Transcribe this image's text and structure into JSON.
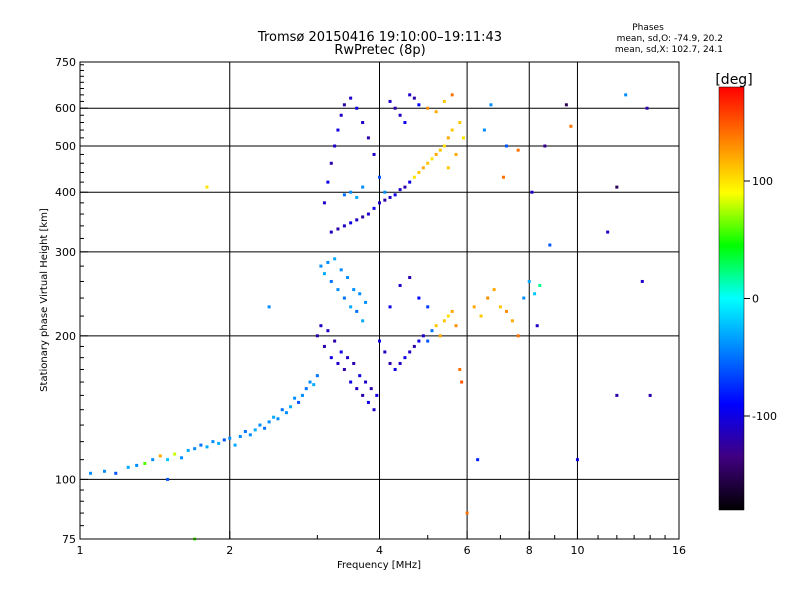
{
  "chart_data": {
    "type": "scatter",
    "title": "Tromsø 20150416 19:10:00–19:11:43",
    "subtitle": "RwPretec (8p)",
    "xlabel": "Frequency [MHz]",
    "ylabel": "Stationary phase Virtual Height [km]",
    "x_scale": "log",
    "y_scale": "log",
    "xlim": [
      1,
      16
    ],
    "ylim": [
      75,
      750
    ],
    "x_ticks": [
      1,
      2,
      4,
      6,
      8,
      10,
      16
    ],
    "x_tick_labels": [
      "1",
      "2",
      "4",
      "6",
      "8",
      "10",
      "16"
    ],
    "y_ticks": [
      75,
      100,
      200,
      300,
      400,
      500,
      600,
      750
    ],
    "y_tick_labels": [
      "75",
      "100",
      "200",
      "300",
      "400",
      "500",
      "600",
      "750"
    ],
    "grid": true,
    "phase_info": {
      "heading": "Phases",
      "line_o": "mean, sd,O: -74.9, 20.2",
      "line_x": "mean, sd,X: 102.7, 24.1"
    },
    "colorbar": {
      "label": "[deg]",
      "range": [
        -180,
        180
      ],
      "ticks": [
        100,
        0,
        -100
      ],
      "tick_labels": [
        "100",
        "0",
        "-100"
      ],
      "colors": [
        "#ff0000",
        "#ff8000",
        "#ffff00",
        "#00ff00",
        "#00ffff",
        "#0080ff",
        "#0000ff",
        "#400080",
        "#000000"
      ]
    },
    "points": [
      [
        1.05,
        103,
        -40
      ],
      [
        1.12,
        104,
        -40
      ],
      [
        1.18,
        103,
        -60
      ],
      [
        1.25,
        106,
        -30
      ],
      [
        1.3,
        107,
        -40
      ],
      [
        1.35,
        108,
        60
      ],
      [
        1.4,
        110,
        -40
      ],
      [
        1.45,
        112,
        120
      ],
      [
        1.5,
        100,
        -60
      ],
      [
        1.5,
        110,
        -20
      ],
      [
        1.55,
        113,
        80
      ],
      [
        1.6,
        111,
        -40
      ],
      [
        1.65,
        115,
        -30
      ],
      [
        1.7,
        116,
        -40
      ],
      [
        1.75,
        118,
        -50
      ],
      [
        1.8,
        117,
        -30
      ],
      [
        1.85,
        120,
        -40
      ],
      [
        1.9,
        119,
        -30
      ],
      [
        1.95,
        121,
        -60
      ],
      [
        2.0,
        122,
        -40
      ],
      [
        2.05,
        118,
        -30
      ],
      [
        2.1,
        123,
        -40
      ],
      [
        2.15,
        126,
        -50
      ],
      [
        2.2,
        124,
        -40
      ],
      [
        2.25,
        127,
        -30
      ],
      [
        2.3,
        130,
        -40
      ],
      [
        2.35,
        128,
        -50
      ],
      [
        2.4,
        132,
        -40
      ],
      [
        2.45,
        135,
        -30
      ],
      [
        2.5,
        134,
        -40
      ],
      [
        2.55,
        140,
        -50
      ],
      [
        2.6,
        138,
        -40
      ],
      [
        2.65,
        142,
        -30
      ],
      [
        2.7,
        148,
        -40
      ],
      [
        2.75,
        145,
        -60
      ],
      [
        2.8,
        150,
        -40
      ],
      [
        2.85,
        155,
        -50
      ],
      [
        2.9,
        160,
        -40
      ],
      [
        2.95,
        158,
        -30
      ],
      [
        3.0,
        165,
        -50
      ],
      [
        2.4,
        230,
        -40
      ],
      [
        1.7,
        75,
        60
      ],
      [
        1.8,
        410,
        100
      ],
      [
        3.05,
        280,
        -40
      ],
      [
        3.1,
        270,
        -30
      ],
      [
        3.15,
        285,
        -40
      ],
      [
        3.2,
        260,
        -50
      ],
      [
        3.25,
        290,
        -30
      ],
      [
        3.3,
        250,
        -40
      ],
      [
        3.35,
        275,
        -40
      ],
      [
        3.4,
        240,
        -50
      ],
      [
        3.45,
        265,
        -40
      ],
      [
        3.5,
        230,
        -30
      ],
      [
        3.55,
        250,
        -40
      ],
      [
        3.6,
        225,
        -50
      ],
      [
        3.65,
        245,
        -40
      ],
      [
        3.7,
        215,
        -30
      ],
      [
        3.75,
        235,
        -40
      ],
      [
        3.0,
        200,
        -120
      ],
      [
        3.05,
        210,
        -110
      ],
      [
        3.1,
        190,
        -120
      ],
      [
        3.15,
        205,
        -110
      ],
      [
        3.2,
        180,
        -100
      ],
      [
        3.25,
        195,
        -120
      ],
      [
        3.3,
        175,
        -110
      ],
      [
        3.35,
        185,
        -100
      ],
      [
        3.4,
        170,
        -120
      ],
      [
        3.45,
        180,
        -110
      ],
      [
        3.5,
        160,
        -100
      ],
      [
        3.55,
        175,
        -120
      ],
      [
        3.6,
        155,
        -110
      ],
      [
        3.65,
        165,
        -100
      ],
      [
        3.7,
        150,
        -120
      ],
      [
        3.75,
        160,
        -110
      ],
      [
        3.8,
        145,
        -100
      ],
      [
        3.85,
        155,
        -120
      ],
      [
        3.9,
        140,
        -110
      ],
      [
        3.95,
        150,
        -100
      ],
      [
        4.0,
        195,
        -100
      ],
      [
        4.1,
        185,
        -110
      ],
      [
        4.2,
        175,
        -120
      ],
      [
        4.3,
        170,
        -100
      ],
      [
        4.4,
        175,
        -110
      ],
      [
        4.5,
        180,
        -100
      ],
      [
        4.6,
        185,
        -110
      ],
      [
        4.7,
        190,
        -120
      ],
      [
        4.8,
        195,
        -100
      ],
      [
        4.9,
        200,
        -110
      ],
      [
        5.0,
        195,
        -60
      ],
      [
        5.1,
        205,
        -50
      ],
      [
        5.2,
        210,
        110
      ],
      [
        5.3,
        200,
        120
      ],
      [
        5.4,
        215,
        110
      ],
      [
        5.5,
        220,
        100
      ],
      [
        5.6,
        225,
        120
      ],
      [
        5.7,
        210,
        130
      ],
      [
        5.8,
        170,
        140
      ],
      [
        5.85,
        160,
        150
      ],
      [
        4.2,
        230,
        -100
      ],
      [
        4.4,
        255,
        -110
      ],
      [
        4.6,
        265,
        -120
      ],
      [
        4.8,
        240,
        -90
      ],
      [
        5.0,
        230,
        -70
      ],
      [
        6.2,
        230,
        120
      ],
      [
        6.4,
        220,
        110
      ],
      [
        6.6,
        240,
        130
      ],
      [
        6.8,
        250,
        120
      ],
      [
        7.0,
        230,
        110
      ],
      [
        7.2,
        225,
        130
      ],
      [
        7.4,
        215,
        120
      ],
      [
        7.6,
        200,
        140
      ],
      [
        7.8,
        240,
        -40
      ],
      [
        8.0,
        260,
        -30
      ],
      [
        8.2,
        245,
        -20
      ],
      [
        8.4,
        255,
        20
      ],
      [
        6.3,
        110,
        -80
      ],
      [
        8.3,
        210,
        -110
      ],
      [
        13.5,
        260,
        -110
      ],
      [
        14.0,
        150,
        -120
      ],
      [
        12.0,
        150,
        -120
      ],
      [
        10.0,
        110,
        -100
      ],
      [
        6.0,
        85,
        140
      ],
      [
        3.2,
        330,
        -110
      ],
      [
        3.3,
        335,
        -120
      ],
      [
        3.4,
        340,
        -110
      ],
      [
        3.5,
        345,
        -100
      ],
      [
        3.6,
        350,
        -110
      ],
      [
        3.7,
        355,
        -120
      ],
      [
        3.8,
        360,
        -110
      ],
      [
        3.9,
        370,
        -100
      ],
      [
        4.0,
        380,
        -110
      ],
      [
        4.1,
        385,
        -120
      ],
      [
        4.2,
        390,
        -110
      ],
      [
        4.3,
        395,
        -100
      ],
      [
        4.4,
        405,
        -110
      ],
      [
        4.5,
        410,
        -120
      ],
      [
        4.6,
        420,
        -100
      ],
      [
        4.7,
        430,
        100
      ],
      [
        4.8,
        440,
        110
      ],
      [
        4.9,
        450,
        120
      ],
      [
        5.0,
        460,
        110
      ],
      [
        5.1,
        470,
        100
      ],
      [
        5.2,
        480,
        120
      ],
      [
        5.3,
        490,
        110
      ],
      [
        5.4,
        500,
        100
      ],
      [
        5.5,
        520,
        120
      ],
      [
        5.6,
        540,
        110
      ],
      [
        3.1,
        380,
        -110
      ],
      [
        3.15,
        420,
        -100
      ],
      [
        3.2,
        460,
        -120
      ],
      [
        3.25,
        500,
        -110
      ],
      [
        3.3,
        540,
        -100
      ],
      [
        3.35,
        580,
        -110
      ],
      [
        3.4,
        610,
        -120
      ],
      [
        3.5,
        630,
        -110
      ],
      [
        3.6,
        600,
        -100
      ],
      [
        3.7,
        560,
        -110
      ],
      [
        3.8,
        520,
        -120
      ],
      [
        3.9,
        480,
        -110
      ],
      [
        4.0,
        430,
        -60
      ],
      [
        4.1,
        400,
        -40
      ],
      [
        3.5,
        400,
        -40
      ],
      [
        3.6,
        390,
        -30
      ],
      [
        3.7,
        410,
        -40
      ],
      [
        3.4,
        395,
        -50
      ],
      [
        4.2,
        620,
        -110
      ],
      [
        4.3,
        600,
        -120
      ],
      [
        4.4,
        580,
        -110
      ],
      [
        4.5,
        560,
        -100
      ],
      [
        4.6,
        640,
        -110
      ],
      [
        4.7,
        630,
        -120
      ],
      [
        4.8,
        610,
        -90
      ],
      [
        5.0,
        600,
        130
      ],
      [
        5.2,
        590,
        120
      ],
      [
        5.4,
        620,
        110
      ],
      [
        5.6,
        640,
        140
      ],
      [
        5.8,
        560,
        110
      ],
      [
        5.9,
        520,
        100
      ],
      [
        5.7,
        480,
        120
      ],
      [
        5.5,
        450,
        110
      ],
      [
        6.7,
        610,
        -40
      ],
      [
        7.2,
        500,
        -60
      ],
      [
        7.6,
        490,
        140
      ],
      [
        7.1,
        430,
        140
      ],
      [
        6.5,
        540,
        -40
      ],
      [
        8.1,
        400,
        -110
      ],
      [
        9.5,
        610,
        -150
      ],
      [
        9.7,
        550,
        140
      ],
      [
        8.6,
        500,
        -130
      ],
      [
        12.5,
        640,
        -40
      ],
      [
        12.0,
        410,
        -150
      ],
      [
        11.5,
        330,
        -110
      ],
      [
        13.8,
        600,
        -120
      ],
      [
        8.8,
        310,
        -60
      ]
    ]
  }
}
